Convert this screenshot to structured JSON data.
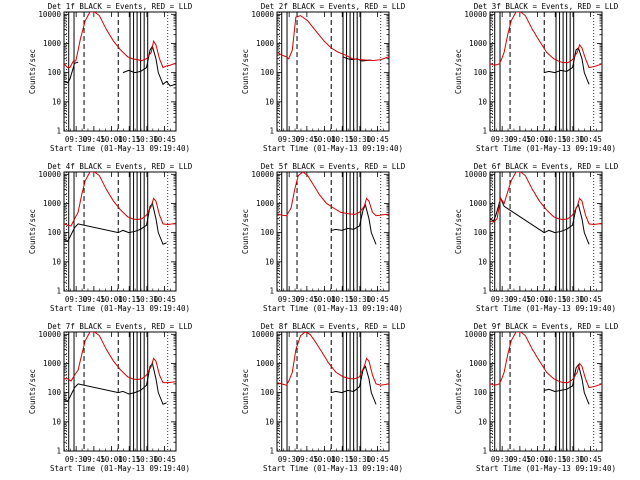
{
  "colors": {
    "events": "#000000",
    "lld": "#d40000",
    "background": "#ffffff"
  },
  "chart_data": {
    "type": "line",
    "ylabel": "Counts/sec",
    "xlabel": "Start Time (01-May-13 09:19:40)",
    "x_tick_labels": [
      "09:30",
      "09:45",
      "10:00",
      "10:15",
      "10:30",
      "10:45"
    ],
    "x_tick_minutes": [
      10.33,
      25.33,
      40.33,
      55.33,
      70.33,
      85.33
    ],
    "y_tick_labels": [
      "1",
      "10",
      "100",
      "1000",
      "10000"
    ],
    "y_tick_values": [
      1,
      10,
      100,
      1000,
      10000
    ],
    "y_scale": "log",
    "x_range_minutes": [
      0,
      95
    ],
    "ylim": [
      1,
      12000
    ],
    "dashed_vlines_minutes": [
      17,
      46
    ],
    "solid_vlines_minutes": [
      56,
      59,
      62,
      65,
      68,
      71
    ],
    "dotted_vlines_minutes": [
      2,
      88
    ],
    "gap_vlines_minutes": [
      4,
      8.5
    ],
    "panels": [
      {
        "title": "Det 1f BLACK = Events, RED = LLD",
        "series": [
          {
            "name": "Events",
            "x": [
              0,
              3,
              5,
              9,
              12,
              16,
              20,
              26,
              32,
              40,
              46,
              50,
              55,
              60,
              65,
              70,
              73,
              75,
              78,
              80,
              84,
              87,
              90,
              95
            ],
            "y": [
              50,
              45,
              60,
              210,
              230,
              null,
              null,
              null,
              null,
              null,
              null,
              100,
              120,
              100,
              110,
              150,
              600,
              800,
              300,
              100,
              40,
              50,
              35,
              40
            ]
          },
          {
            "name": "LLD",
            "x": [
              0,
              3,
              5,
              8,
              10,
              12,
              14,
              18,
              22,
              26,
              30,
              36,
              42,
              48,
              54,
              58,
              62,
              66,
              70,
              74,
              76,
              78,
              81,
              84,
              87,
              90,
              93,
              95
            ],
            "y": [
              200,
              150,
              150,
              250,
              250,
              600,
              1500,
              6000,
              12000,
              12000,
              9000,
              3000,
              1200,
              600,
              350,
              300,
              280,
              260,
              300,
              500,
              1200,
              900,
              300,
              150,
              170,
              180,
              200,
              210
            ]
          }
        ]
      },
      {
        "title": "Det 2f BLACK = Events, RED = LLD",
        "series": [
          {
            "name": "Events",
            "x": [
              12,
              16,
              20,
              30,
              40,
              50,
              56,
              60,
              64,
              68,
              72,
              76,
              80
            ],
            "y": [
              null,
              null,
              null,
              null,
              null,
              null,
              350,
              300,
              280,
              300,
              250,
              260,
              270
            ]
          },
          {
            "name": "LLD",
            "x": [
              0,
              4,
              8,
              10,
              13,
              16,
              20,
              26,
              32,
              40,
              46,
              52,
              58,
              64,
              70,
              76,
              82,
              88,
              95
            ],
            "y": [
              500,
              400,
              350,
              300,
              600,
              8000,
              9000,
              6000,
              3000,
              1200,
              700,
              500,
              400,
              300,
              280,
              270,
              260,
              280,
              350
            ]
          }
        ]
      },
      {
        "title": "Det 3f BLACK = Events, RED = LLD",
        "series": [
          {
            "name": "Events",
            "x": [
              46,
              50,
              55,
              60,
              65,
              70,
              73,
              75,
              78,
              80,
              84
            ],
            "y": [
              100,
              110,
              100,
              120,
              110,
              150,
              600,
              700,
              300,
              100,
              40
            ]
          },
          {
            "name": "LLD",
            "x": [
              0,
              4,
              8,
              10,
              12,
              15,
              18,
              22,
              26,
              30,
              36,
              42,
              48,
              54,
              58,
              62,
              66,
              70,
              74,
              76,
              78,
              81,
              84,
              88,
              92,
              95
            ],
            "y": [
              200,
              180,
              200,
              300,
              500,
              2000,
              6000,
              12000,
              12000,
              9000,
              3000,
              1200,
              500,
              300,
              250,
              220,
              220,
              280,
              500,
              900,
              700,
              300,
              150,
              160,
              180,
              200
            ]
          }
        ]
      },
      {
        "title": "Det 4f BLACK = Events, RED = LLD",
        "series": [
          {
            "name": "Events",
            "x": [
              0,
              3,
              5,
              9,
              12,
              46,
              50,
              55,
              60,
              65,
              70,
              73,
              75,
              78,
              80,
              84,
              87
            ],
            "y": [
              60,
              50,
              70,
              150,
              200,
              100,
              120,
              100,
              110,
              130,
              180,
              800,
              1000,
              300,
              100,
              40,
              45
            ]
          },
          {
            "name": "LLD",
            "x": [
              0,
              3,
              6,
              9,
              12,
              15,
              18,
              22,
              26,
              30,
              36,
              42,
              48,
              54,
              58,
              62,
              66,
              70,
              74,
              76,
              78,
              81,
              84,
              88,
              92,
              95
            ],
            "y": [
              200,
              180,
              170,
              300,
              500,
              2000,
              6000,
              12000,
              12000,
              9000,
              3000,
              1200,
              600,
              350,
              300,
              280,
              300,
              400,
              800,
              1500,
              1200,
              400,
              200,
              190,
              200,
              210
            ]
          }
        ]
      },
      {
        "title": "Det 5f BLACK = Events, RED = LLD",
        "series": [
          {
            "name": "Events",
            "x": [
              46,
              50,
              55,
              60,
              65,
              70,
              73,
              75,
              78,
              80,
              84
            ],
            "y": [
              120,
              130,
              120,
              140,
              130,
              170,
              600,
              900,
              300,
              100,
              40
            ]
          },
          {
            "name": "LLD",
            "x": [
              0,
              4,
              8,
              12,
              15,
              18,
              22,
              26,
              30,
              36,
              42,
              48,
              54,
              60,
              66,
              70,
              74,
              76,
              78,
              81,
              84,
              88,
              92,
              95
            ],
            "y": [
              450,
              400,
              380,
              700,
              3000,
              9000,
              12000,
              9000,
              5000,
              2000,
              1000,
              700,
              500,
              450,
              420,
              500,
              800,
              1500,
              1200,
              500,
              380,
              400,
              420,
              430
            ]
          }
        ]
      },
      {
        "title": "Det 6f BLACK = Events, RED = LLD",
        "series": [
          {
            "name": "Events",
            "x": [
              0,
              3,
              5,
              9,
              12,
              46,
              50,
              55,
              60,
              65,
              70,
              73,
              75,
              78,
              80,
              84
            ],
            "y": [
              300,
              250,
              400,
              1500,
              800,
              100,
              120,
              100,
              110,
              130,
              180,
              700,
              900,
              300,
              100,
              40
            ]
          },
          {
            "name": "LLD",
            "x": [
              0,
              3,
              6,
              9,
              12,
              15,
              18,
              22,
              26,
              30,
              36,
              42,
              48,
              54,
              58,
              62,
              66,
              70,
              74,
              76,
              78,
              81,
              84,
              88,
              92,
              95
            ],
            "y": [
              250,
              230,
              300,
              1500,
              1000,
              2500,
              6000,
              12000,
              12000,
              9000,
              3000,
              1200,
              600,
              350,
              300,
              280,
              300,
              400,
              800,
              1500,
              1200,
              400,
              200,
              190,
              200,
              210
            ]
          }
        ]
      },
      {
        "title": "Det 7f BLACK = Events, RED = LLD",
        "series": [
          {
            "name": "Events",
            "x": [
              0,
              3,
              5,
              9,
              12,
              46,
              50,
              55,
              60,
              65,
              70,
              73,
              75,
              78,
              80,
              84,
              87
            ],
            "y": [
              60,
              50,
              70,
              150,
              200,
              100,
              110,
              90,
              100,
              120,
              180,
              800,
              1000,
              300,
              100,
              40,
              45
            ]
          },
          {
            "name": "LLD",
            "x": [
              0,
              3,
              6,
              9,
              12,
              15,
              18,
              22,
              26,
              30,
              36,
              42,
              48,
              54,
              58,
              62,
              66,
              70,
              74,
              76,
              78,
              81,
              84,
              88,
              92,
              95
            ],
            "y": [
              300,
              300,
              250,
              400,
              600,
              2000,
              6000,
              12000,
              12000,
              9000,
              3000,
              1200,
              600,
              350,
              300,
              280,
              300,
              400,
              800,
              1500,
              1200,
              400,
              220,
              220,
              230,
              240
            ]
          }
        ]
      },
      {
        "title": "Det 8f BLACK = Events, RED = LLD",
        "series": [
          {
            "name": "Events",
            "x": [
              46,
              50,
              55,
              60,
              65,
              70,
              73,
              75,
              78,
              80,
              84
            ],
            "y": [
              100,
              110,
              100,
              120,
              110,
              160,
              600,
              800,
              300,
              100,
              40
            ]
          },
          {
            "name": "LLD",
            "x": [
              0,
              4,
              8,
              10,
              13,
              16,
              20,
              24,
              28,
              32,
              38,
              44,
              50,
              56,
              62,
              66,
              70,
              74,
              76,
              78,
              81,
              84,
              88,
              92,
              95
            ],
            "y": [
              220,
              200,
              180,
              250,
              500,
              3000,
              9000,
              12000,
              10000,
              6000,
              2500,
              1000,
              500,
              350,
              300,
              300,
              350,
              800,
              1500,
              1200,
              400,
              200,
              180,
              190,
              200
            ]
          }
        ]
      },
      {
        "title": "Det 9f BLACK = Events, RED = LLD",
        "series": [
          {
            "name": "Events",
            "x": [
              46,
              50,
              55,
              60,
              65,
              70,
              73,
              75,
              78,
              80,
              84
            ],
            "y": [
              120,
              130,
              110,
              120,
              130,
              170,
              700,
              900,
              300,
              100,
              40
            ]
          },
          {
            "name": "LLD",
            "x": [
              0,
              4,
              8,
              10,
              12,
              15,
              18,
              22,
              26,
              30,
              36,
              42,
              48,
              54,
              58,
              62,
              66,
              70,
              74,
              76,
              78,
              81,
              84,
              88,
              92,
              95
            ],
            "y": [
              200,
              180,
              200,
              300,
              500,
              2000,
              6000,
              12000,
              12000,
              9000,
              3000,
              1200,
              500,
              300,
              250,
              220,
              220,
              280,
              500,
              1000,
              800,
              300,
              150,
              160,
              180,
              200
            ]
          }
        ]
      }
    ]
  }
}
